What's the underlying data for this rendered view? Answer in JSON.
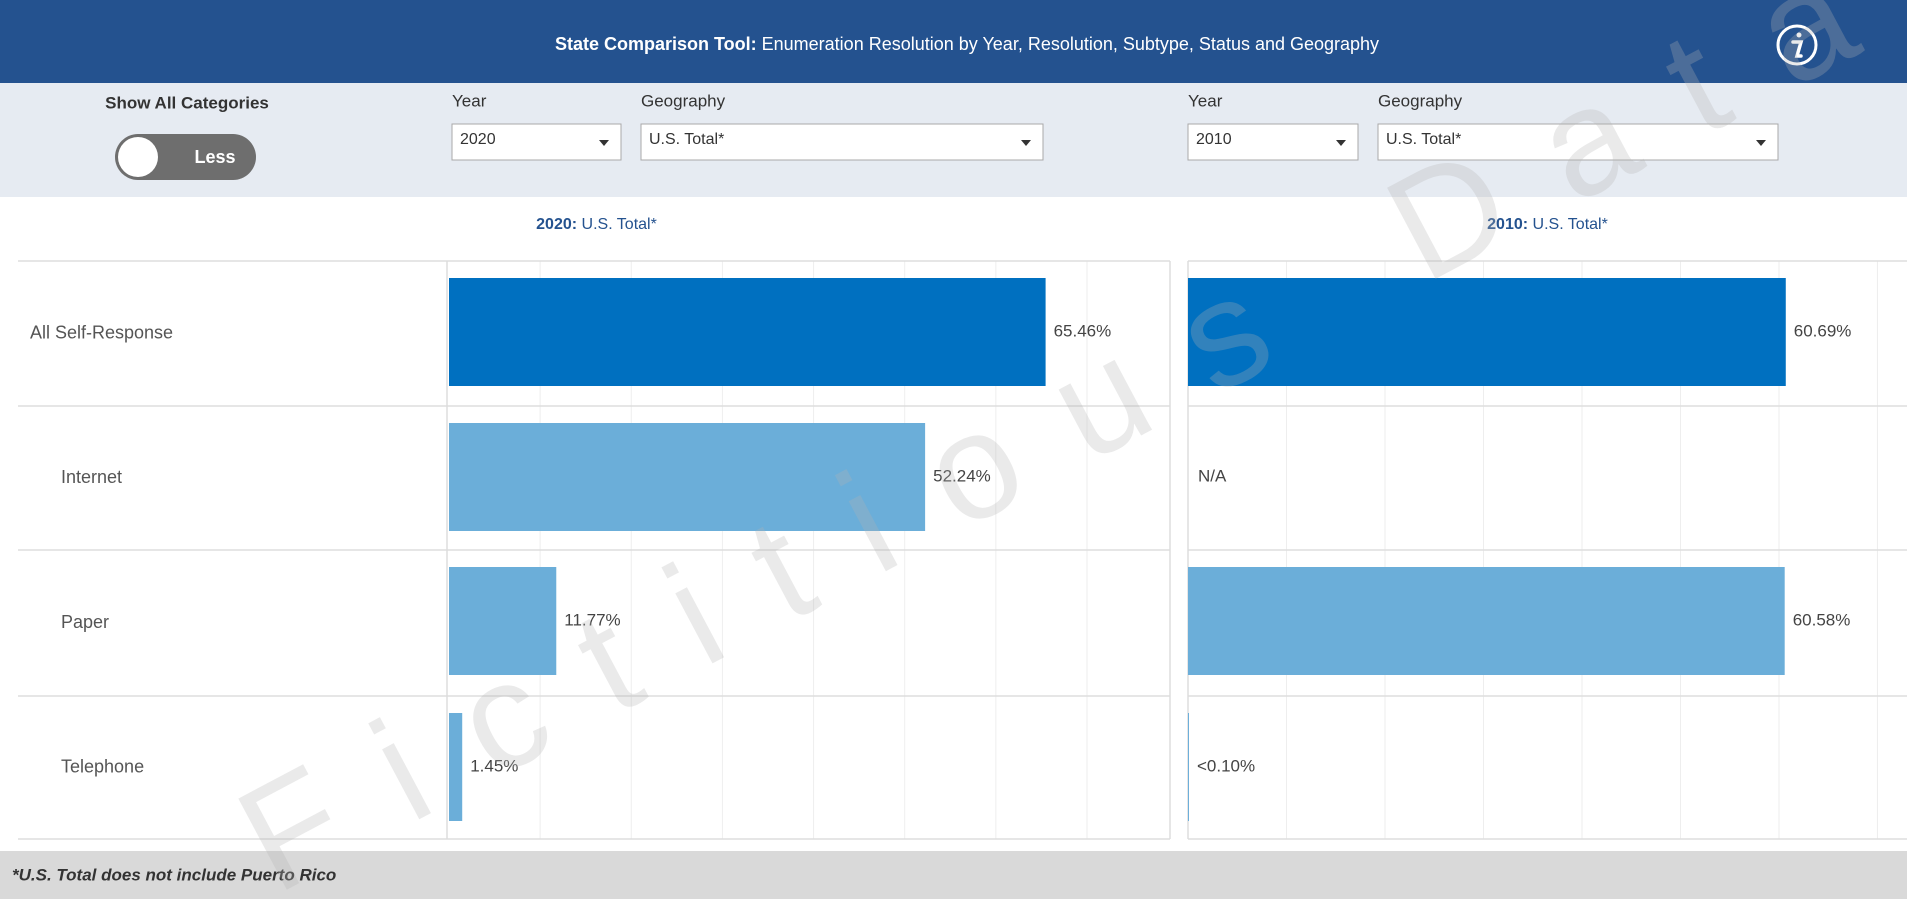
{
  "header": {
    "title_bold": "State Comparison Tool:",
    "title": "Enumeration Resolution by Year, Resolution, Subtype, Status and Geography"
  },
  "controls": {
    "toggle_label": "Show All Categories",
    "toggle_state": "Less",
    "panels": [
      {
        "year_label": "Year",
        "year": "2020",
        "geo_label": "Geography",
        "geo": "U.S. Total*"
      },
      {
        "year_label": "Year",
        "year": "2010",
        "geo_label": "Geography",
        "geo": "U.S. Total*"
      }
    ]
  },
  "chart_data": [
    {
      "type": "bar",
      "orientation": "horizontal",
      "title_bold": "2020:",
      "title": "U.S. Total*",
      "categories": [
        "All Self-Response",
        "Internet",
        "Paper",
        "Telephone"
      ],
      "values": [
        65.46,
        52.24,
        11.77,
        1.45
      ],
      "value_labels": [
        "65.46%",
        "52.24%",
        "11.77%",
        "1.45%"
      ],
      "colors": [
        "#0070c0",
        "#6baed9",
        "#6baed9",
        "#6baed9"
      ],
      "xlim": [
        0,
        79
      ],
      "xticks": [
        10,
        20,
        30,
        40,
        50,
        60,
        70
      ],
      "grid": true
    },
    {
      "type": "bar",
      "orientation": "horizontal",
      "title_bold": "2010:",
      "title": "U.S. Total*",
      "values": [
        60.69,
        null,
        60.58,
        0.1
      ],
      "value_labels": [
        "60.69%",
        "N/A",
        "60.58%",
        "<0.10%"
      ],
      "colors": [
        "#0070c0",
        "#6baed9",
        "#6baed9",
        "#6baed9"
      ],
      "xlim": [
        0,
        73
      ],
      "xticks": [
        10,
        20,
        30,
        40,
        50,
        60,
        70
      ],
      "grid": true
    }
  ],
  "footnote": "*U.S. Total does not include Puerto Rico",
  "watermark": "Fictitious Data"
}
